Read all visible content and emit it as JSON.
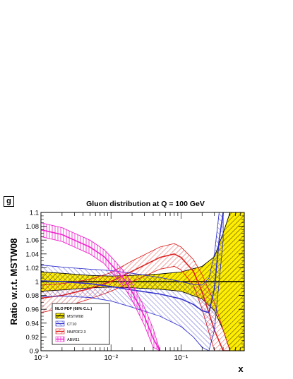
{
  "panel_tag": "g",
  "chart_data": {
    "type": "area",
    "title": "Gluon distribution at Q = 100 GeV",
    "xlabel": "x",
    "ylabel": "Ratio w.r.t. MSTW08",
    "xscale": "log",
    "xlim": [
      0.001,
      0.8
    ],
    "ylim": [
      0.9,
      1.1
    ],
    "xticklabels": [
      "10⁻³",
      "10⁻²",
      "10⁻¹"
    ],
    "xtick_values": [
      0.001,
      0.01,
      0.1
    ],
    "yticks": [
      0.9,
      0.92,
      0.94,
      0.96,
      0.98,
      1.0,
      1.02,
      1.04,
      1.06,
      1.08,
      1.1
    ],
    "yticklabels": [
      "0.9",
      "0.92",
      "0.94",
      "0.96",
      "0.98",
      "1",
      "1.02",
      "1.04",
      "1.06",
      "1.08",
      "1.1"
    ],
    "legend": {
      "title": "NLO PDF (68% C.L.)",
      "placement": "bottom-left"
    },
    "series": [
      {
        "name": "MSTW08",
        "color": "#ffee00",
        "edge_color": "#000000",
        "hatch": "black-diagonal",
        "x": [
          0.001,
          0.002,
          0.005,
          0.01,
          0.02,
          0.05,
          0.1,
          0.2,
          0.3,
          0.4,
          0.5,
          0.6,
          0.7,
          0.8
        ],
        "upper": [
          1.014,
          1.012,
          1.009,
          1.008,
          1.009,
          1.011,
          1.014,
          1.022,
          1.036,
          1.07,
          1.1,
          1.1,
          1.1,
          1.1
        ],
        "lower": [
          0.986,
          0.988,
          0.991,
          0.992,
          0.991,
          0.989,
          0.986,
          0.975,
          0.958,
          0.93,
          0.9,
          0.9,
          0.9,
          0.9
        ],
        "central": [
          1,
          1,
          1,
          1,
          1,
          1,
          1,
          1,
          1,
          1,
          1,
          1,
          1,
          1
        ]
      },
      {
        "name": "CT10",
        "color": "#3333cc",
        "hatch": "blue-diagonal",
        "x": [
          0.001,
          0.002,
          0.005,
          0.01,
          0.02,
          0.05,
          0.1,
          0.15,
          0.2,
          0.25,
          0.3,
          0.35,
          0.4
        ],
        "central": [
          1.001,
          1.0,
          0.997,
          0.993,
          0.988,
          0.982,
          0.975,
          0.967,
          0.958,
          0.955,
          0.99,
          1.06,
          1.1
        ],
        "upper": [
          1.024,
          1.021,
          1.018,
          1.016,
          1.012,
          1.006,
          1.0,
          0.996,
          0.995,
          1.005,
          1.04,
          1.1,
          1.1
        ],
        "lower": [
          0.978,
          0.979,
          0.977,
          0.972,
          0.963,
          0.95,
          0.935,
          0.92,
          0.905,
          0.9,
          0.93,
          1.0,
          1.06
        ]
      },
      {
        "name": "NNPDF2.3",
        "color": "#dd2222",
        "hatch": "red-diagonal",
        "x": [
          0.001,
          0.002,
          0.005,
          0.01,
          0.02,
          0.05,
          0.08,
          0.1,
          0.15,
          0.2,
          0.3,
          0.4,
          0.5
        ],
        "central": [
          0.976,
          0.98,
          0.99,
          1.0,
          1.015,
          1.035,
          1.04,
          1.035,
          1.015,
          0.985,
          0.93,
          0.9,
          0.9
        ],
        "upper": [
          0.995,
          0.997,
          1.003,
          1.013,
          1.03,
          1.05,
          1.055,
          1.05,
          1.032,
          1.01,
          0.97,
          0.93,
          0.9
        ],
        "lower": [
          0.955,
          0.962,
          0.975,
          0.986,
          1.0,
          1.018,
          1.022,
          1.017,
          0.995,
          0.96,
          0.9,
          0.9,
          0.9
        ]
      },
      {
        "name": "ABM11",
        "color": "#ee22cc",
        "hatch": "magenta-vertical",
        "x": [
          0.001,
          0.002,
          0.003,
          0.005,
          0.008,
          0.01,
          0.015,
          0.02,
          0.03,
          0.04,
          0.05
        ],
        "central": [
          1.075,
          1.068,
          1.06,
          1.05,
          1.036,
          1.025,
          1.005,
          0.985,
          0.95,
          0.918,
          0.9
        ],
        "upper": [
          1.085,
          1.078,
          1.07,
          1.06,
          1.046,
          1.036,
          1.016,
          0.997,
          0.963,
          0.932,
          0.9
        ],
        "lower": [
          1.065,
          1.058,
          1.05,
          1.04,
          1.026,
          1.014,
          0.994,
          0.973,
          0.937,
          0.905,
          0.9
        ]
      }
    ]
  }
}
